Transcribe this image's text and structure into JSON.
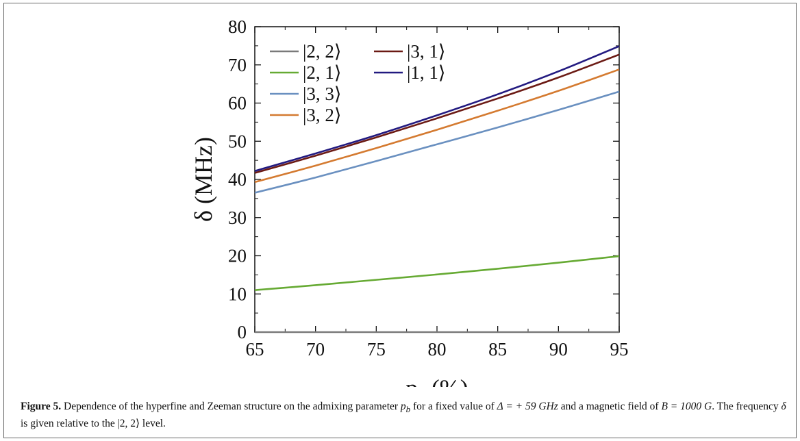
{
  "chart_data": {
    "type": "line",
    "xlabel": "p",
    "xlabel_sub": "b",
    "xlabel_unit": "(%)",
    "ylabel": "δ (MHz)",
    "xlim": [
      65,
      95
    ],
    "ylim": [
      0,
      80
    ],
    "xticks": [
      "65",
      "70",
      "75",
      "80",
      "85",
      "90",
      "95"
    ],
    "yticks": [
      "0",
      "10",
      "20",
      "30",
      "40",
      "50",
      "60",
      "70",
      "80"
    ],
    "grid": false,
    "legend_position": "top-left",
    "series": [
      {
        "name": "|2, 2⟩",
        "color": "#7a7a7a",
        "x": [
          65,
          70,
          75,
          80,
          85,
          90,
          95
        ],
        "y": [
          0,
          0,
          0,
          0,
          0,
          0,
          0
        ]
      },
      {
        "name": "|2, 1⟩",
        "color": "#66aa33",
        "x": [
          65,
          70,
          75,
          80,
          85,
          90,
          95
        ],
        "y": [
          11.0,
          12.3,
          13.7,
          15.1,
          16.6,
          18.2,
          19.9
        ]
      },
      {
        "name": "|3, 3⟩",
        "color": "#6a90c0",
        "x": [
          65,
          70,
          75,
          80,
          85,
          90,
          95
        ],
        "y": [
          36.5,
          40.5,
          44.8,
          49.2,
          53.6,
          58.2,
          63.0
        ]
      },
      {
        "name": "|3, 2⟩",
        "color": "#d47a30",
        "x": [
          65,
          70,
          75,
          80,
          85,
          90,
          95
        ],
        "y": [
          39.3,
          43.6,
          48.2,
          53.0,
          58.0,
          63.2,
          68.8
        ]
      },
      {
        "name": "|3, 1⟩",
        "color": "#6b1a14",
        "x": [
          65,
          70,
          75,
          80,
          85,
          90,
          95
        ],
        "y": [
          41.7,
          46.2,
          51.0,
          56.0,
          61.2,
          66.7,
          72.7
        ]
      },
      {
        "name": "|1, 1⟩",
        "color": "#221a80",
        "x": [
          65,
          70,
          75,
          80,
          85,
          90,
          95
        ],
        "y": [
          42.2,
          46.8,
          51.6,
          56.8,
          62.3,
          68.3,
          74.9
        ]
      }
    ]
  },
  "caption": {
    "label": "Figure 5.",
    "part1": " Dependence of the hyperfine and Zeeman structure on the admixing parameter ",
    "param": "p",
    "param_sub": "b",
    "part2": " for a fixed value of ",
    "delta_expr": "Δ = + 59 GHz",
    "part3": " and a magnetic field of ",
    "b_expr": "B = 1000 G",
    "part4": ". The frequency ",
    "freq_sym": "δ",
    "part5": " is given relative to the |2, 2⟩ level."
  }
}
